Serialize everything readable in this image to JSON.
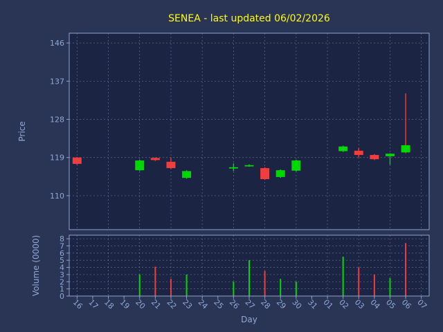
{
  "chart_data": {
    "type": "candlestick",
    "title": "SENEA - last updated 06/02/2026",
    "xlabel": "Day",
    "price_ylabel": "Price",
    "volume_ylabel": "Volume (0000)",
    "x_categories": [
      "16",
      "17",
      "18",
      "19",
      "20",
      "21",
      "22",
      "23",
      "24",
      "25",
      "26",
      "27",
      "28",
      "29",
      "30",
      "31",
      "01",
      "02",
      "03",
      "04",
      "05",
      "06",
      "07"
    ],
    "price_ticks": [
      110,
      119,
      128,
      137,
      146
    ],
    "price_ylim": [
      102.0,
      148.3
    ],
    "volume_ticks": [
      0,
      1,
      2,
      3,
      4,
      5,
      6,
      7,
      8
    ],
    "volume_ylim": [
      0,
      8.5
    ],
    "grid": "dashed",
    "candles": [
      {
        "day": "16",
        "open": 119.0,
        "close": 117.5,
        "low": 117.3,
        "high": 119.1,
        "color": "red"
      },
      {
        "day": "20",
        "open": 116.0,
        "close": 118.3,
        "low": 115.8,
        "high": 118.5,
        "color": "green"
      },
      {
        "day": "21",
        "open": 118.9,
        "close": 118.4,
        "low": 118.2,
        "high": 119.0,
        "color": "red"
      },
      {
        "day": "22",
        "open": 118.0,
        "close": 116.5,
        "low": 116.3,
        "high": 119.0,
        "color": "red"
      },
      {
        "day": "23",
        "open": 114.2,
        "close": 115.8,
        "low": 114.0,
        "high": 116.0,
        "color": "green"
      },
      {
        "day": "26",
        "open": 116.5,
        "close": 116.7,
        "low": 115.8,
        "high": 117.6,
        "color": "green"
      },
      {
        "day": "27",
        "open": 117.0,
        "close": 117.2,
        "low": 116.8,
        "high": 117.4,
        "color": "green"
      },
      {
        "day": "28",
        "open": 116.5,
        "close": 113.9,
        "low": 113.7,
        "high": 116.7,
        "color": "red"
      },
      {
        "day": "29",
        "open": 114.4,
        "close": 116.0,
        "low": 114.2,
        "high": 116.2,
        "color": "green"
      },
      {
        "day": "30",
        "open": 115.9,
        "close": 118.3,
        "low": 115.7,
        "high": 118.5,
        "color": "green"
      },
      {
        "day": "02",
        "open": 120.5,
        "close": 121.6,
        "low": 120.3,
        "high": 121.8,
        "color": "green"
      },
      {
        "day": "03",
        "open": 120.6,
        "close": 119.6,
        "low": 119.0,
        "high": 121.2,
        "color": "red"
      },
      {
        "day": "04",
        "open": 119.6,
        "close": 118.6,
        "low": 118.4,
        "high": 119.8,
        "color": "red"
      },
      {
        "day": "05",
        "open": 119.3,
        "close": 119.9,
        "low": 117.3,
        "high": 120.0,
        "color": "green"
      },
      {
        "day": "06",
        "open": 120.2,
        "close": 121.9,
        "low": 120.0,
        "high": 134.1,
        "color": "green",
        "wick_color": "red"
      }
    ],
    "volumes": [
      {
        "day": "20",
        "value": 3.0,
        "color": "green"
      },
      {
        "day": "21",
        "value": 4.1,
        "color": "red"
      },
      {
        "day": "22",
        "value": 2.4,
        "color": "red"
      },
      {
        "day": "23",
        "value": 3.0,
        "color": "green"
      },
      {
        "day": "26",
        "value": 2.0,
        "color": "green"
      },
      {
        "day": "27",
        "value": 5.0,
        "color": "green"
      },
      {
        "day": "28",
        "value": 3.5,
        "color": "red"
      },
      {
        "day": "29",
        "value": 2.4,
        "color": "green"
      },
      {
        "day": "30",
        "value": 2.0,
        "color": "green"
      },
      {
        "day": "02",
        "value": 5.5,
        "color": "green"
      },
      {
        "day": "03",
        "value": 4.0,
        "color": "red"
      },
      {
        "day": "04",
        "value": 3.0,
        "color": "red"
      },
      {
        "day": "05",
        "value": 2.5,
        "color": "green"
      },
      {
        "day": "06",
        "value": 7.4,
        "color": "red"
      }
    ],
    "colors": {
      "up": "#00d900",
      "down": "#ef3e3e",
      "title": "#ffff00",
      "tick_label": "#8fa8d8",
      "grid": "#aab6d3",
      "frame": "#8fa3cc",
      "figure_bg": "#2a3455",
      "axes_bg": "#1b2443"
    }
  }
}
